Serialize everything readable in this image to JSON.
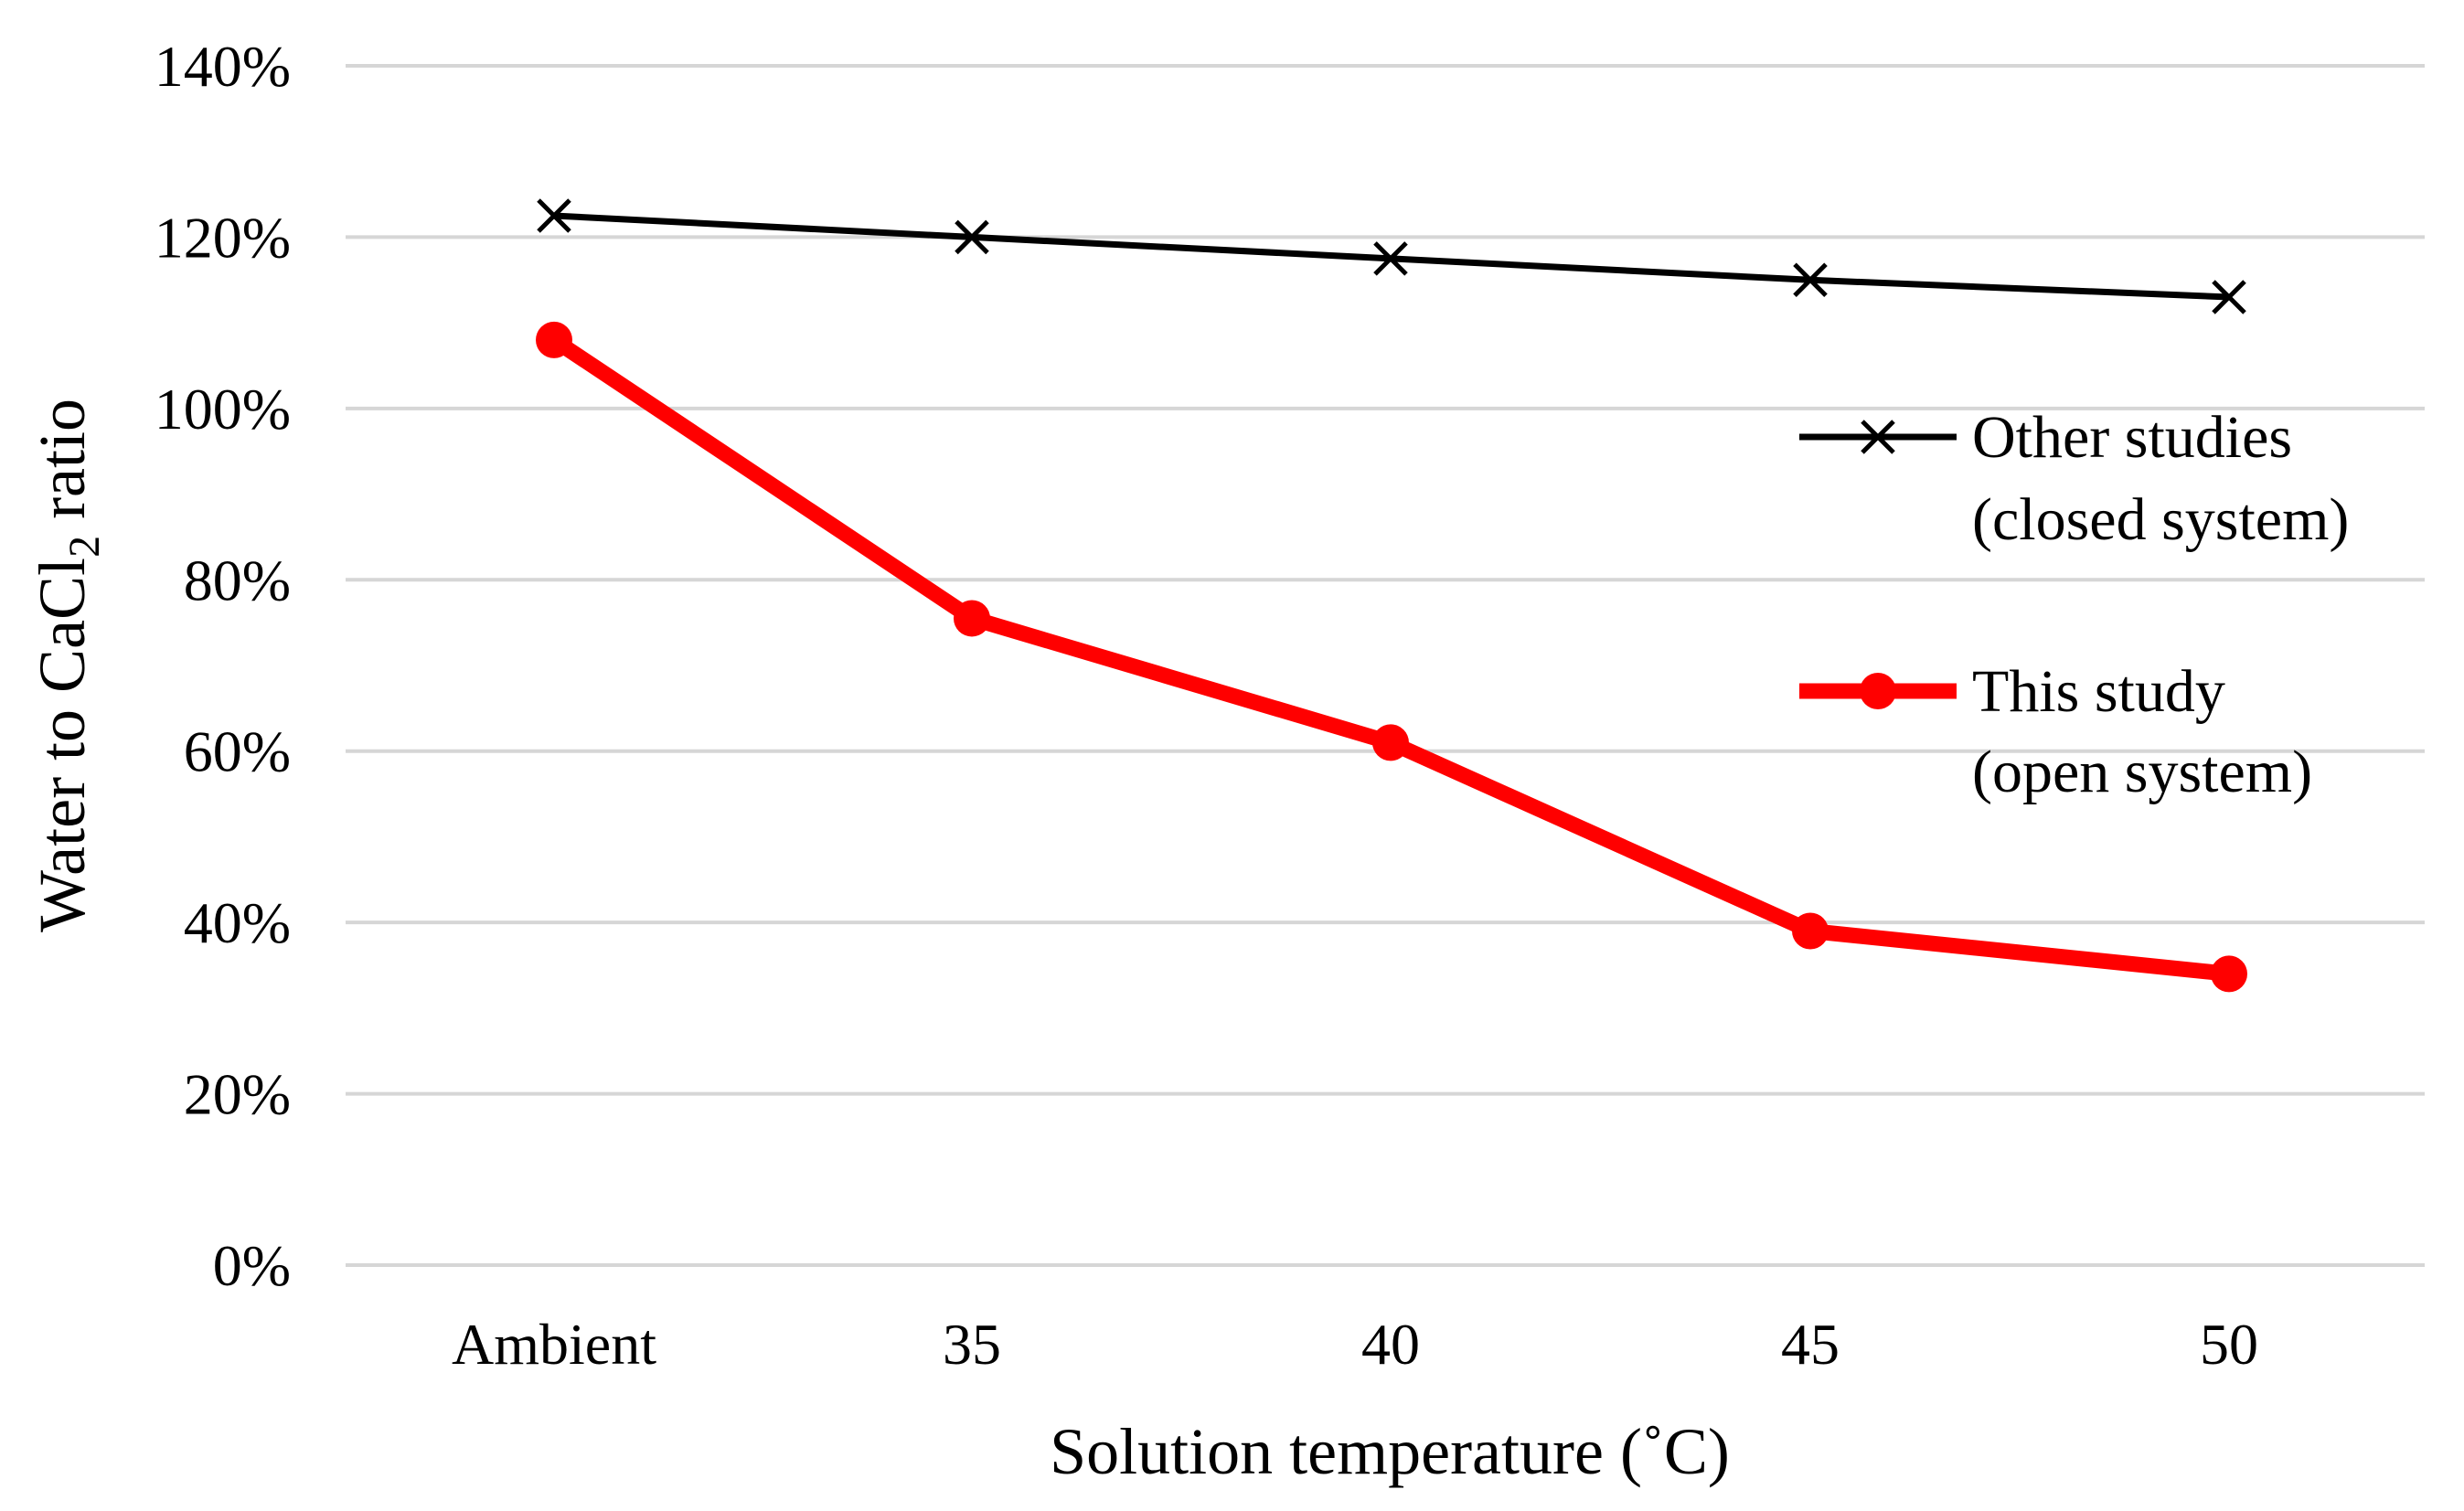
{
  "chart_data": {
    "type": "line",
    "title": "",
    "xlabel": "Solution temperature (˚C)",
    "ylabel": {
      "prefix": "Water to CaCl",
      "subscript": "2",
      "suffix": " ratio"
    },
    "categories": [
      "Ambient",
      "35",
      "40",
      "45",
      "50"
    ],
    "ylim": [
      0,
      140
    ],
    "yticks": [
      0,
      20,
      40,
      60,
      80,
      100,
      120,
      140
    ],
    "ytick_labels": [
      "0%",
      "20%",
      "40%",
      "60%",
      "80%",
      "100%",
      "120%",
      "140%"
    ],
    "grid": true,
    "legend_position": "right",
    "series": [
      {
        "name": "Other studies (closed system)",
        "legend_lines": [
          "Other studies",
          "(closed system)"
        ],
        "values": [
          122.5,
          120,
          117.5,
          115,
          113
        ],
        "color": "#000000",
        "marker": "x"
      },
      {
        "name": "This study (open system)",
        "legend_lines": [
          "This study",
          "(open system)"
        ],
        "values": [
          108,
          75.5,
          61,
          39,
          34
        ],
        "color": "#ff0000",
        "marker": "circle"
      }
    ]
  }
}
